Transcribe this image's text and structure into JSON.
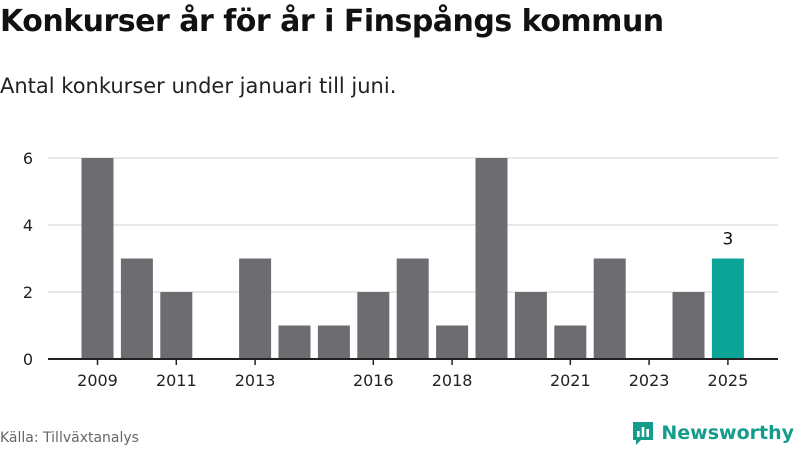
{
  "header": {
    "title": "Konkurser år för år i Finspångs kommun",
    "subtitle": "Antal konkurser under januari till juni."
  },
  "footer": {
    "source": "Källa: Tillväxtanalys",
    "brand": "Newsworthy"
  },
  "colors": {
    "bar": "#6d6c71",
    "highlight": "#0aa596",
    "grid": "#d9d9d9",
    "axis": "#222222",
    "brand": "#149c8c"
  },
  "chart_data": {
    "type": "bar",
    "title": "Konkurser år för år i Finspångs kommun",
    "subtitle": "Antal konkurser under januari till juni.",
    "xlabel": "",
    "ylabel": "",
    "categories": [
      "2009",
      "2010",
      "2011",
      "2012",
      "2013",
      "2014",
      "2015",
      "2016",
      "2017",
      "2018",
      "2019",
      "2020",
      "2021",
      "2022",
      "2023",
      "2024",
      "2025"
    ],
    "values": [
      6,
      3,
      2,
      0,
      3,
      1,
      1,
      2,
      3,
      1,
      6,
      2,
      1,
      3,
      0,
      2,
      3
    ],
    "x_tick_labels": [
      "2009",
      "2011",
      "2013",
      "2016",
      "2018",
      "2021",
      "2023",
      "2025"
    ],
    "y_ticks": [
      0,
      2,
      4,
      6
    ],
    "ylim": [
      0,
      6
    ],
    "highlight_category": "2025",
    "data_labels": [
      {
        "category": "2025",
        "text": "3"
      }
    ],
    "grid": true,
    "legend": "none"
  }
}
